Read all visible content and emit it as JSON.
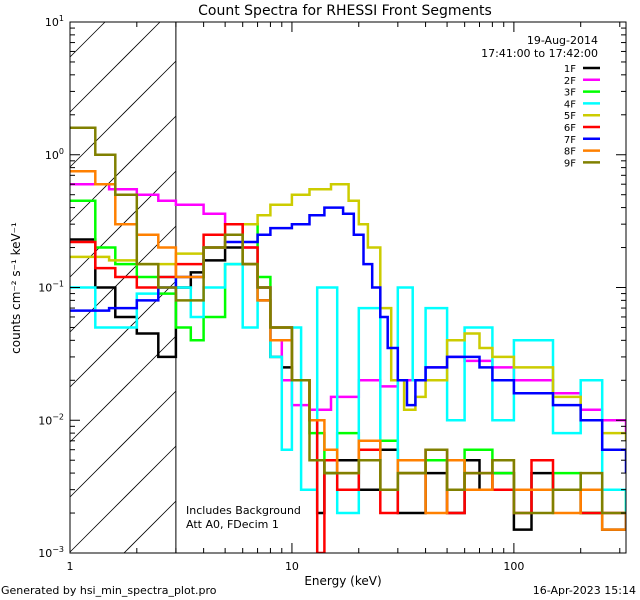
{
  "chart_data": {
    "type": "line",
    "title": "Count Spectra for RHESSI Front Segments",
    "xlabel": "Energy (keV)",
    "ylabel": "counts cm⁻² s⁻¹ keV⁻¹",
    "xscale": "log",
    "yscale": "log",
    "xlim": [
      1,
      320
    ],
    "ylim": [
      0.001,
      10
    ],
    "x_ticks": [
      {
        "v": 1,
        "label": "1"
      },
      {
        "v": 10,
        "label": "10"
      },
      {
        "v": 100,
        "label": "100"
      }
    ],
    "y_ticks": [
      {
        "v": 0.001,
        "base": "10",
        "exp": "−3"
      },
      {
        "v": 0.01,
        "base": "10",
        "exp": "−2"
      },
      {
        "v": 0.1,
        "base": "10",
        "exp": "−1"
      },
      {
        "v": 1,
        "base": "10",
        "exp": "0"
      },
      {
        "v": 10,
        "base": "10",
        "exp": "1"
      }
    ],
    "hatched_region": [
      1,
      3
    ],
    "legend_position": "top-right",
    "date": "19-Aug-2014",
    "time_range": "17:41:00 to 17:42:00",
    "annotations": [
      "Includes Background",
      "Att A0, FDecim 1"
    ],
    "series": [
      {
        "name": "1F",
        "color": "#000000",
        "points": [
          [
            1,
            0.23
          ],
          [
            1.3,
            0.1
          ],
          [
            1.6,
            0.06
          ],
          [
            2,
            0.045
          ],
          [
            2.5,
            0.03
          ],
          [
            3,
            0.1
          ],
          [
            3.5,
            0.13
          ],
          [
            4,
            0.16
          ],
          [
            5,
            0.2
          ],
          [
            6,
            0.15
          ],
          [
            7,
            0.08
          ],
          [
            8,
            0.03
          ],
          [
            9,
            0.025
          ],
          [
            10,
            0.02
          ],
          [
            12,
            0.01
          ],
          [
            13,
            0.002
          ],
          [
            14,
            0.004
          ],
          [
            16,
            0.005
          ],
          [
            20,
            0.003
          ],
          [
            25,
            0.006
          ],
          [
            30,
            0.002
          ],
          [
            40,
            0.004
          ],
          [
            50,
            0.002
          ],
          [
            60,
            0.005
          ],
          [
            70,
            0.003
          ],
          [
            80,
            0.004
          ],
          [
            100,
            0.0015
          ],
          [
            120,
            0.004
          ],
          [
            150,
            0.003
          ],
          [
            200,
            0.002
          ],
          [
            250,
            0.0015
          ],
          [
            320,
            0.002
          ]
        ]
      },
      {
        "name": "2F",
        "color": "#ff00ff",
        "points": [
          [
            1,
            0.6
          ],
          [
            1.5,
            0.55
          ],
          [
            2,
            0.5
          ],
          [
            2.5,
            0.45
          ],
          [
            3,
            0.42
          ],
          [
            4,
            0.36
          ],
          [
            5,
            0.3
          ],
          [
            6,
            0.2
          ],
          [
            7,
            0.1
          ],
          [
            8,
            0.04
          ],
          [
            9,
            0.02
          ],
          [
            10,
            0.013
          ],
          [
            12,
            0.012
          ],
          [
            15,
            0.015
          ],
          [
            20,
            0.02
          ],
          [
            25,
            0.018
          ],
          [
            30,
            0.02
          ],
          [
            40,
            0.025
          ],
          [
            50,
            0.03
          ],
          [
            60,
            0.028
          ],
          [
            80,
            0.025
          ],
          [
            100,
            0.02
          ],
          [
            150,
            0.016
          ],
          [
            200,
            0.012
          ],
          [
            250,
            0.01
          ],
          [
            320,
            0.008
          ]
        ]
      },
      {
        "name": "3F",
        "color": "#00ff00",
        "points": [
          [
            1,
            0.45
          ],
          [
            1.3,
            0.2
          ],
          [
            1.6,
            0.15
          ],
          [
            2,
            0.12
          ],
          [
            2.5,
            0.09
          ],
          [
            3,
            0.05
          ],
          [
            3.5,
            0.04
          ],
          [
            4,
            0.06
          ],
          [
            5,
            0.15
          ],
          [
            6,
            0.3
          ],
          [
            7,
            0.12
          ],
          [
            8,
            0.05
          ],
          [
            10,
            0.02
          ],
          [
            12,
            0.008
          ],
          [
            14,
            0.004
          ],
          [
            16,
            0.008
          ],
          [
            20,
            0.005
          ],
          [
            25,
            0.007
          ],
          [
            30,
            0.004
          ],
          [
            40,
            0.005
          ],
          [
            50,
            0.003
          ],
          [
            60,
            0.006
          ],
          [
            80,
            0.004
          ],
          [
            100,
            0.003
          ],
          [
            150,
            0.004
          ],
          [
            200,
            0.002
          ],
          [
            250,
            0.003
          ],
          [
            320,
            0.002
          ]
        ]
      },
      {
        "name": "4F",
        "color": "#00ffff",
        "points": [
          [
            1,
            0.1
          ],
          [
            1.3,
            0.05
          ],
          [
            1.6,
            0.05
          ],
          [
            2,
            0.09
          ],
          [
            2.5,
            0.12
          ],
          [
            3,
            0.1
          ],
          [
            3.5,
            0.06
          ],
          [
            4,
            0.1
          ],
          [
            5,
            0.15
          ],
          [
            6,
            0.05
          ],
          [
            7,
            0.1
          ],
          [
            8,
            0.03
          ],
          [
            9,
            0.006
          ],
          [
            10,
            0.05
          ],
          [
            11,
            0.003
          ],
          [
            13,
            0.1
          ],
          [
            16,
            0.002
          ],
          [
            20,
            0.07
          ],
          [
            25,
            0.003
          ],
          [
            30,
            0.1
          ],
          [
            35,
            0.02
          ],
          [
            40,
            0.07
          ],
          [
            50,
            0.01
          ],
          [
            60,
            0.05
          ],
          [
            80,
            0.01
          ],
          [
            100,
            0.04
          ],
          [
            150,
            0.008
          ],
          [
            200,
            0.02
          ],
          [
            250,
            0.003
          ],
          [
            320,
            0.002
          ]
        ]
      },
      {
        "name": "5F",
        "color": "#cccc00",
        "points": [
          [
            1,
            0.17
          ],
          [
            1.5,
            0.16
          ],
          [
            2,
            0.15
          ],
          [
            3,
            0.18
          ],
          [
            4,
            0.2
          ],
          [
            5,
            0.25
          ],
          [
            6,
            0.3
          ],
          [
            7,
            0.35
          ],
          [
            8,
            0.42
          ],
          [
            10,
            0.5
          ],
          [
            12,
            0.55
          ],
          [
            15,
            0.6
          ],
          [
            18,
            0.45
          ],
          [
            20,
            0.3
          ],
          [
            22,
            0.2
          ],
          [
            25,
            0.07
          ],
          [
            28,
            0.02
          ],
          [
            32,
            0.012
          ],
          [
            36,
            0.015
          ],
          [
            40,
            0.02
          ],
          [
            50,
            0.04
          ],
          [
            60,
            0.045
          ],
          [
            70,
            0.035
          ],
          [
            80,
            0.03
          ],
          [
            100,
            0.025
          ],
          [
            150,
            0.015
          ],
          [
            200,
            0.01
          ],
          [
            250,
            0.008
          ],
          [
            320,
            0.007
          ]
        ]
      },
      {
        "name": "6F",
        "color": "#ff0000",
        "points": [
          [
            1,
            0.22
          ],
          [
            1.3,
            0.14
          ],
          [
            1.6,
            0.12
          ],
          [
            2,
            0.1
          ],
          [
            2.5,
            0.12
          ],
          [
            3,
            0.15
          ],
          [
            4,
            0.25
          ],
          [
            5,
            0.3
          ],
          [
            6,
            0.2
          ],
          [
            7,
            0.1
          ],
          [
            8,
            0.05
          ],
          [
            10,
            0.02
          ],
          [
            12,
            0.01
          ],
          [
            13,
            0.001
          ],
          [
            14,
            0.005
          ],
          [
            16,
            0.003
          ],
          [
            20,
            0.006
          ],
          [
            25,
            0.002
          ],
          [
            30,
            0.004
          ],
          [
            40,
            0.006
          ],
          [
            50,
            0.002
          ],
          [
            60,
            0.004
          ],
          [
            80,
            0.003
          ],
          [
            100,
            0.002
          ],
          [
            120,
            0.005
          ],
          [
            150,
            0.003
          ],
          [
            200,
            0.002
          ],
          [
            320,
            0.002
          ]
        ]
      },
      {
        "name": "7F",
        "color": "#0000ff",
        "points": [
          [
            1,
            0.067
          ],
          [
            1.5,
            0.07
          ],
          [
            2,
            0.08
          ],
          [
            2.5,
            0.1
          ],
          [
            3,
            0.12
          ],
          [
            4,
            0.2
          ],
          [
            5,
            0.22
          ],
          [
            7,
            0.25
          ],
          [
            8,
            0.28
          ],
          [
            10,
            0.3
          ],
          [
            12,
            0.35
          ],
          [
            14,
            0.4
          ],
          [
            17,
            0.36
          ],
          [
            19,
            0.25
          ],
          [
            21,
            0.15
          ],
          [
            23,
            0.1
          ],
          [
            25,
            0.06
          ],
          [
            27,
            0.035
          ],
          [
            30,
            0.02
          ],
          [
            33,
            0.013
          ],
          [
            36,
            0.02
          ],
          [
            40,
            0.025
          ],
          [
            50,
            0.03
          ],
          [
            60,
            0.03
          ],
          [
            70,
            0.025
          ],
          [
            80,
            0.02
          ],
          [
            100,
            0.016
          ],
          [
            150,
            0.013
          ],
          [
            200,
            0.01
          ],
          [
            250,
            0.006
          ],
          [
            320,
            0.004
          ]
        ]
      },
      {
        "name": "8F",
        "color": "#ff8000",
        "points": [
          [
            1,
            0.75
          ],
          [
            1.3,
            0.6
          ],
          [
            1.6,
            0.3
          ],
          [
            2,
            0.25
          ],
          [
            2.5,
            0.2
          ],
          [
            3,
            0.12
          ],
          [
            4,
            0.2
          ],
          [
            5,
            0.25
          ],
          [
            6,
            0.15
          ],
          [
            7,
            0.08
          ],
          [
            8,
            0.04
          ],
          [
            10,
            0.02
          ],
          [
            12,
            0.01
          ],
          [
            14,
            0.006
          ],
          [
            16,
            0.004
          ],
          [
            20,
            0.007
          ],
          [
            25,
            0.003
          ],
          [
            30,
            0.005
          ],
          [
            40,
            0.002
          ],
          [
            50,
            0.005
          ],
          [
            60,
            0.003
          ],
          [
            80,
            0.005
          ],
          [
            100,
            0.003
          ],
          [
            150,
            0.002
          ],
          [
            200,
            0.003
          ],
          [
            250,
            0.0015
          ],
          [
            320,
            0.002
          ]
        ]
      },
      {
        "name": "9F",
        "color": "#808000",
        "points": [
          [
            1,
            1.6
          ],
          [
            1.3,
            1.0
          ],
          [
            1.6,
            0.5
          ],
          [
            2,
            0.15
          ],
          [
            2.5,
            0.1
          ],
          [
            3,
            0.08
          ],
          [
            4,
            0.2
          ],
          [
            5,
            0.25
          ],
          [
            6,
            0.15
          ],
          [
            7,
            0.1
          ],
          [
            8,
            0.05
          ],
          [
            10,
            0.02
          ],
          [
            12,
            0.005
          ],
          [
            14,
            0.004
          ],
          [
            20,
            0.005
          ],
          [
            25,
            0.003
          ],
          [
            30,
            0.004
          ],
          [
            40,
            0.006
          ],
          [
            50,
            0.003
          ],
          [
            60,
            0.004
          ],
          [
            80,
            0.005
          ],
          [
            100,
            0.002
          ],
          [
            150,
            0.003
          ],
          [
            200,
            0.004
          ],
          [
            250,
            0.002
          ],
          [
            320,
            0.002
          ]
        ]
      }
    ]
  },
  "footer": {
    "generated_by": "Generated by hsi_min_spectra_plot.pro",
    "timestamp": "16-Apr-2023 15:14"
  }
}
